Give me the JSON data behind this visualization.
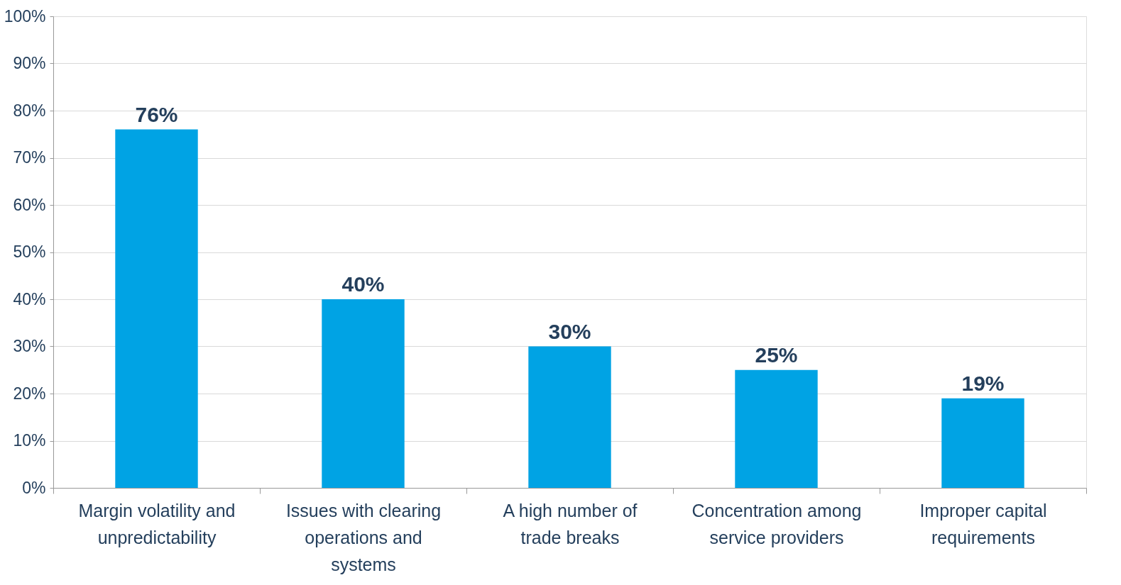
{
  "chart_data": {
    "type": "bar",
    "categories": [
      "Margin volatility and unpredictability",
      "Issues with clearing operations and systems",
      "A high number of trade breaks",
      "Concentration among service providers",
      "Improper capital requirements"
    ],
    "values": [
      76,
      40,
      30,
      25,
      19
    ],
    "value_labels": [
      "76%",
      "40%",
      "30%",
      "25%",
      "19%"
    ],
    "color": "#00a3e4",
    "ylim": [
      0,
      100
    ],
    "yticks": [
      {
        "value": 0,
        "label": "0%"
      },
      {
        "value": 10,
        "label": "10%"
      },
      {
        "value": 20,
        "label": "20%"
      },
      {
        "value": 30,
        "label": "30%"
      },
      {
        "value": 40,
        "label": "40%"
      },
      {
        "value": 50,
        "label": "50%"
      },
      {
        "value": 60,
        "label": "60%"
      },
      {
        "value": 70,
        "label": "70%"
      },
      {
        "value": 80,
        "label": "80%"
      },
      {
        "value": 90,
        "label": "90%"
      },
      {
        "value": 100,
        "label": "100%"
      }
    ],
    "grid": "y"
  }
}
